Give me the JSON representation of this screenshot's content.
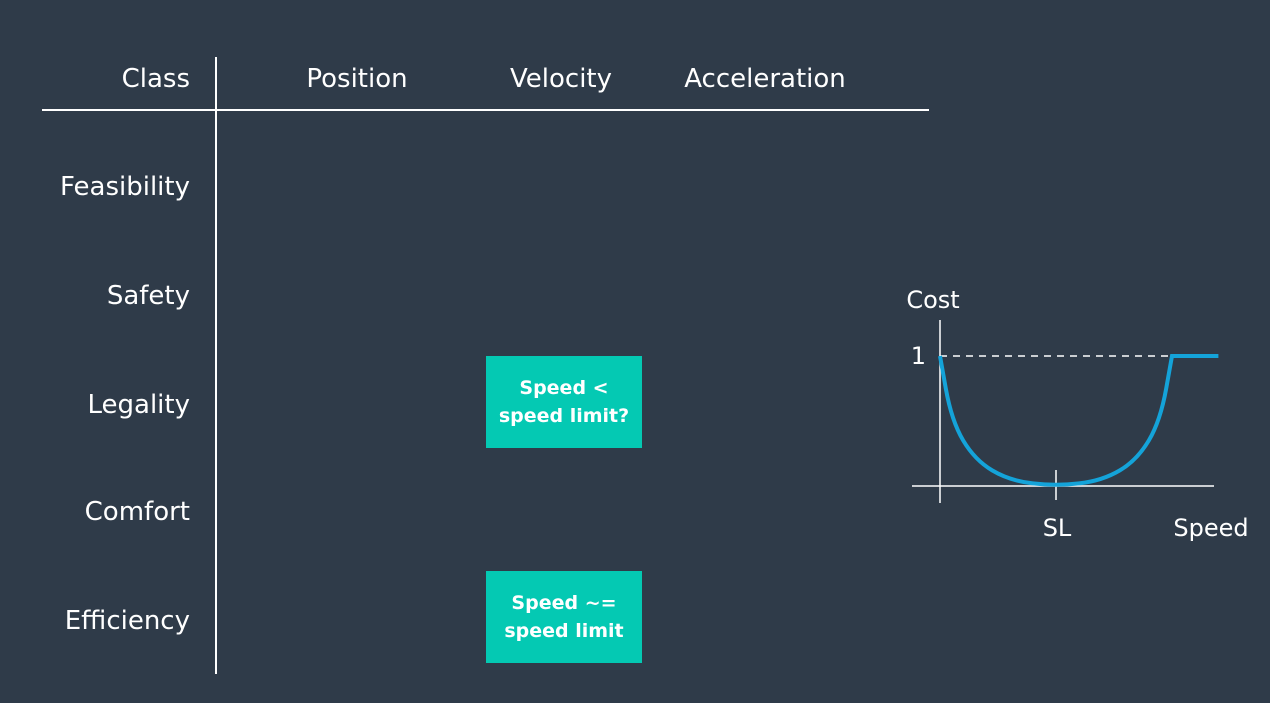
{
  "table": {
    "header": {
      "class": "Class",
      "position": "Position",
      "velocity": "Velocity",
      "acceleration": "Acceleration"
    },
    "rows": [
      {
        "label": "Feasibility"
      },
      {
        "label": "Safety"
      },
      {
        "label": "Legality",
        "velocity_cell": "Speed <\nspeed limit?"
      },
      {
        "label": "Comfort"
      },
      {
        "label": "Efficiency",
        "velocity_cell": "Speed ~=\nspeed limit"
      }
    ],
    "cell_color": "#04c9b3"
  },
  "chart_data": {
    "type": "line",
    "ylabel": "Cost",
    "xlabel": "Speed",
    "x_tick_labels": [
      "SL"
    ],
    "y_tick_labels": [
      "1"
    ],
    "reference_line": {
      "y": 1,
      "style": "dashed"
    },
    "series": [
      {
        "color": "#14a3d9",
        "points": [
          [
            0.0,
            1.0
          ],
          [
            0.05,
            0.5
          ],
          [
            0.15,
            0.2
          ],
          [
            0.3,
            0.04
          ],
          [
            0.5,
            0.0
          ],
          [
            0.7,
            0.04
          ],
          [
            0.85,
            0.2
          ],
          [
            0.95,
            0.5
          ],
          [
            1.0,
            1.0
          ],
          [
            1.2,
            1.0
          ]
        ]
      }
    ]
  },
  "colors": {
    "background": "#2f3b49",
    "text": "#ffffff",
    "curve": "#14a3d9"
  }
}
